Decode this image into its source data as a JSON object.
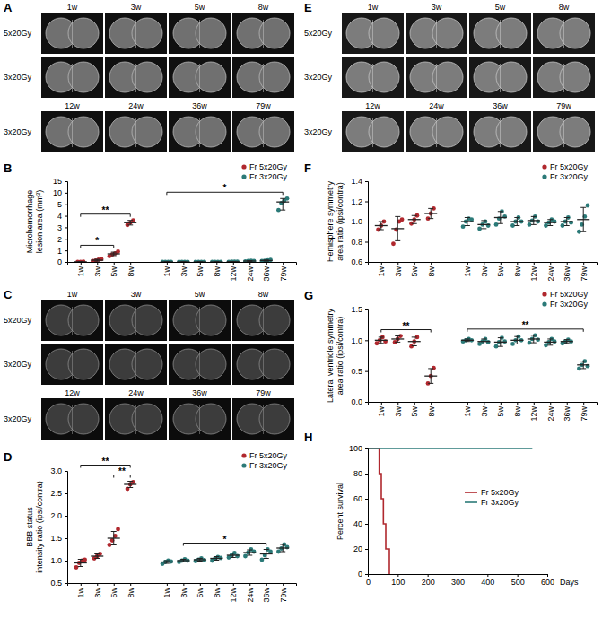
{
  "chart_data": [
    {
      "type": "scatter",
      "title": "B",
      "y_label": [
        "Microhemorrhage",
        "lesion area (mm²)"
      ],
      "categories": [
        "1w",
        "3w",
        "5w",
        "8w",
        "1w",
        "3w",
        "5w",
        "8w",
        "12w",
        "24w",
        "36w",
        "79w"
      ],
      "series": [
        {
          "name": "Fr 5x20Gy",
          "color": "#b0282e",
          "values": [
            0.01,
            0.15,
            0.7,
            3.4,
            null,
            null,
            null,
            null,
            null,
            null,
            null,
            null
          ],
          "error": [
            0.01,
            0.08,
            0.15,
            0.2,
            null,
            null,
            null,
            null,
            null,
            null,
            null,
            null
          ],
          "points": [
            [
              0,
              0.01,
              0.02
            ],
            [
              0.08,
              0.12,
              0.2,
              0.25
            ],
            [
              0.5,
              0.65,
              0.75,
              0.9
            ],
            [
              3.2,
              3.4,
              3.6
            ],
            null,
            null,
            null,
            null,
            null,
            null,
            null,
            null
          ]
        },
        {
          "name": "Fr 3x20Gy",
          "color": "#2b7a78",
          "values": [
            null,
            null,
            null,
            null,
            0,
            0,
            0,
            0,
            0.02,
            0.08,
            0.12,
            6.0
          ],
          "error": [
            null,
            null,
            null,
            null,
            0,
            0,
            0,
            0,
            0.01,
            0.03,
            0.05,
            1.5
          ],
          "points": [
            null,
            null,
            null,
            null,
            [
              0,
              0,
              0,
              0
            ],
            [
              0,
              0,
              0,
              0
            ],
            [
              0,
              0,
              0,
              0
            ],
            [
              0,
              0,
              0,
              0
            ],
            [
              0.01,
              0.02,
              0.03,
              0.02
            ],
            [
              0.05,
              0.08,
              0.1,
              0.09
            ],
            [
              0.08,
              0.1,
              0.15,
              0.18
            ],
            [
              4.5,
              5.5,
              6.5,
              7.5
            ]
          ]
        }
      ],
      "ylim": [
        0,
        15
      ],
      "yticks": [
        0,
        1,
        2,
        3,
        4,
        5,
        10,
        15
      ],
      "legend": "top-right",
      "annotations": [
        {
          "text": "*",
          "from": 0,
          "to": 2
        },
        {
          "text": "**",
          "from": 0,
          "to": 3
        },
        {
          "text": "*",
          "from": 4,
          "to": 11
        }
      ]
    },
    {
      "type": "scatter",
      "title": "D",
      "y_label": [
        "BBB status",
        "intensity ratio (ipsi/contra)"
      ],
      "categories": [
        "1w",
        "3w",
        "5w",
        "8w",
        "1w",
        "3w",
        "5w",
        "8w",
        "12w",
        "24w",
        "36w",
        "79w"
      ],
      "series": [
        {
          "name": "Fr 5x20Gy",
          "color": "#b0282e",
          "values": [
            0.95,
            1.1,
            1.5,
            2.7,
            null,
            null,
            null,
            null,
            null,
            null,
            null,
            null
          ],
          "error": [
            0.08,
            0.05,
            0.15,
            0.07,
            null,
            null,
            null,
            null,
            null,
            null,
            null,
            null
          ],
          "points": [
            [
              0.85,
              0.95,
              1.0,
              1.02
            ],
            [
              1.05,
              1.1,
              1.15
            ],
            [
              1.35,
              1.45,
              1.55,
              1.7
            ],
            [
              2.6,
              2.7,
              2.75
            ],
            null,
            null,
            null,
            null,
            null,
            null,
            null,
            null
          ]
        },
        {
          "name": "Fr 3x20Gy",
          "color": "#2b7a78",
          "values": [
            null,
            null,
            null,
            null,
            0.97,
            1.0,
            1.02,
            1.05,
            1.12,
            1.18,
            1.15,
            1.28
          ],
          "error": [
            null,
            null,
            null,
            null,
            0.03,
            0.03,
            0.03,
            0.04,
            0.05,
            0.06,
            0.1,
            0.08
          ],
          "points": [
            null,
            null,
            null,
            null,
            [
              0.93,
              0.97,
              1.0,
              0.98
            ],
            [
              0.97,
              1.0,
              1.03,
              1.0
            ],
            [
              0.99,
              1.02,
              1.05,
              1.01
            ],
            [
              1.0,
              1.05,
              1.08,
              1.06
            ],
            [
              1.07,
              1.12,
              1.17,
              1.1
            ],
            [
              1.1,
              1.18,
              1.25,
              1.2
            ],
            [
              1.02,
              1.12,
              1.25,
              1.2
            ],
            [
              1.2,
              1.27,
              1.36,
              1.3
            ]
          ]
        }
      ],
      "ylim": [
        0.5,
        3
      ],
      "yticks": [
        0.5,
        {
          "value": 1,
          "label": "1.0"
        },
        1.5,
        {
          "value": 2,
          "label": "2.0"
        },
        2.5,
        {
          "value": 3,
          "label": "3.0"
        }
      ],
      "legend": "top-right",
      "annotations": [
        {
          "text": "**",
          "from": 2,
          "to": 3
        },
        {
          "text": "**",
          "from": 0,
          "to": 3
        },
        {
          "text": "*",
          "from": 5,
          "to": 10
        }
      ]
    },
    {
      "type": "scatter",
      "title": "F",
      "y_label": [
        "Hemisphere symmetry",
        "area ratio (ipsi/contra)"
      ],
      "categories": [
        "1w",
        "3w",
        "5w",
        "8w",
        "1w",
        "3w",
        "5w",
        "8w",
        "12w",
        "24w",
        "36w",
        "79w"
      ],
      "series": [
        {
          "name": "Fr 5x20Gy",
          "color": "#b0282e",
          "values": [
            0.96,
            0.93,
            1.02,
            1.08,
            null,
            null,
            null,
            null,
            null,
            null,
            null,
            null
          ],
          "error": [
            0.04,
            0.12,
            0.04,
            0.05,
            null,
            null,
            null,
            null,
            null,
            null,
            null,
            null
          ],
          "points": [
            [
              0.92,
              0.96,
              1.0
            ],
            [
              0.78,
              0.92,
              1.0,
              1.02
            ],
            [
              0.98,
              1.02,
              1.06
            ],
            [
              1.03,
              1.08,
              1.13
            ],
            null,
            null,
            null,
            null,
            null,
            null,
            null,
            null
          ]
        },
        {
          "name": "Fr 3x20Gy",
          "color": "#2b7a78",
          "values": [
            null,
            null,
            null,
            null,
            1.0,
            0.97,
            1.04,
            1.0,
            1.01,
            0.99,
            1.0,
            1.02
          ],
          "error": [
            null,
            null,
            null,
            null,
            0.04,
            0.04,
            0.06,
            0.04,
            0.04,
            0.03,
            0.04,
            0.12
          ],
          "points": [
            null,
            null,
            null,
            null,
            [
              0.95,
              1.0,
              1.03,
              1.02
            ],
            [
              0.93,
              0.97,
              1.0,
              0.96
            ],
            [
              0.97,
              1.03,
              1.1,
              1.05
            ],
            [
              0.96,
              1.0,
              1.04,
              1.0
            ],
            [
              0.97,
              1.01,
              1.05,
              1.0
            ],
            [
              0.96,
              0.99,
              1.02,
              1.0
            ],
            [
              0.96,
              1.0,
              1.04,
              0.99
            ],
            [
              0.9,
              0.97,
              1.05,
              1.16
            ]
          ]
        }
      ],
      "ylim": [
        0.6,
        1.4
      ],
      "yticks": [
        0.6,
        0.8,
        {
          "value": 1,
          "label": "1.0"
        },
        1.2,
        1.4
      ],
      "legend": "top-right",
      "annotations": []
    },
    {
      "type": "scatter",
      "title": "G",
      "y_label": [
        "Lateral ventricle symmetry",
        "area ratio (ipsi/contra)"
      ],
      "categories": [
        "1w",
        "3w",
        "5w",
        "8w",
        "1w",
        "3w",
        "5w",
        "8w",
        "12w",
        "24w",
        "36w",
        "79w"
      ],
      "series": [
        {
          "name": "Fr 5x20Gy",
          "color": "#b0282e",
          "values": [
            1.0,
            1.02,
            0.98,
            0.42,
            null,
            null,
            null,
            null,
            null,
            null,
            null,
            null
          ],
          "error": [
            0.05,
            0.05,
            0.07,
            0.12,
            null,
            null,
            null,
            null,
            null,
            null,
            null,
            null
          ],
          "points": [
            [
              0.95,
              1.0,
              1.05,
              0.98
            ],
            [
              0.97,
              1.02,
              1.07
            ],
            [
              0.9,
              0.98,
              1.05
            ],
            [
              0.3,
              0.42,
              0.55
            ],
            null,
            null,
            null,
            null,
            null,
            null,
            null,
            null
          ]
        },
        {
          "name": "Fr 3x20Gy",
          "color": "#2b7a78",
          "values": [
            null,
            null,
            null,
            null,
            1.0,
            0.98,
            0.97,
            1.0,
            1.02,
            0.97,
            0.98,
            0.6
          ],
          "error": [
            null,
            null,
            null,
            null,
            0.02,
            0.04,
            0.07,
            0.06,
            0.06,
            0.05,
            0.03,
            0.06
          ],
          "points": [
            null,
            null,
            null,
            null,
            [
              0.98,
              1.0,
              1.02,
              1.0
            ],
            [
              0.94,
              0.98,
              1.02,
              0.97
            ],
            [
              0.9,
              0.97,
              1.04,
              0.98
            ],
            [
              0.94,
              1.0,
              1.06,
              1.0
            ],
            [
              0.96,
              1.02,
              1.08,
              1.01
            ],
            [
              0.92,
              0.97,
              1.02,
              0.98
            ],
            [
              0.95,
              0.98,
              1.01,
              0.98
            ],
            [
              0.54,
              0.6,
              0.66,
              0.58
            ]
          ]
        }
      ],
      "ylim": [
        0,
        1.5
      ],
      "yticks": [
        {
          "value": 0,
          "label": "0.0"
        },
        0.5,
        {
          "value": 1,
          "label": "1.0"
        },
        1.5
      ],
      "legend": "top-right",
      "annotations": [
        {
          "text": "**",
          "from": 0,
          "to": 3
        },
        {
          "text": "**",
          "from": 4,
          "to": 11
        }
      ]
    },
    {
      "type": "line",
      "title": "H",
      "y_label": [
        "Percent survival"
      ],
      "x_label": "Days",
      "series": [
        {
          "name": "Fr 5x20Gy",
          "color": "#b0282e",
          "line_style": "step",
          "x": [
            0,
            38,
            45,
            52,
            60,
            72
          ],
          "values": [
            100,
            80,
            60,
            40,
            20,
            0
          ]
        },
        {
          "name": "Fr 3x20Gy",
          "color": "#2b7a78",
          "line_style": "step",
          "x": [
            0,
            550
          ],
          "values": [
            100,
            100
          ]
        }
      ],
      "xlim": [
        0,
        600
      ],
      "xticks": [
        0,
        100,
        200,
        300,
        400,
        500,
        600
      ],
      "ylim": [
        0,
        100
      ],
      "yticks": [
        0,
        20,
        40,
        60,
        80,
        100
      ],
      "legend": "right"
    }
  ],
  "image_panels": [
    {
      "label": "A",
      "groups": [
        {
          "columns": [
            "1w",
            "3w",
            "5w",
            "8w"
          ],
          "rows": [
            "5x20Gy",
            "3x20Gy"
          ]
        },
        {
          "columns": [
            "12w",
            "24w",
            "36w",
            "79w"
          ],
          "rows": [
            "3x20Gy"
          ]
        }
      ]
    },
    {
      "label": "C",
      "groups": [
        {
          "columns": [
            "1w",
            "3w",
            "5w",
            "8w"
          ],
          "rows": [
            "5x20Gy",
            "3x20Gy"
          ]
        },
        {
          "columns": [
            "12w",
            "24w",
            "36w",
            "79w"
          ],
          "rows": [
            "3x20Gy"
          ]
        }
      ]
    },
    {
      "label": "E",
      "groups": [
        {
          "columns": [
            "1w",
            "3w",
            "5w",
            "8w"
          ],
          "rows": [
            "5x20Gy",
            "3x20Gy"
          ]
        },
        {
          "columns": [
            "12w",
            "24w",
            "36w",
            "79w"
          ],
          "rows": [
            "3x20Gy"
          ]
        }
      ]
    }
  ]
}
